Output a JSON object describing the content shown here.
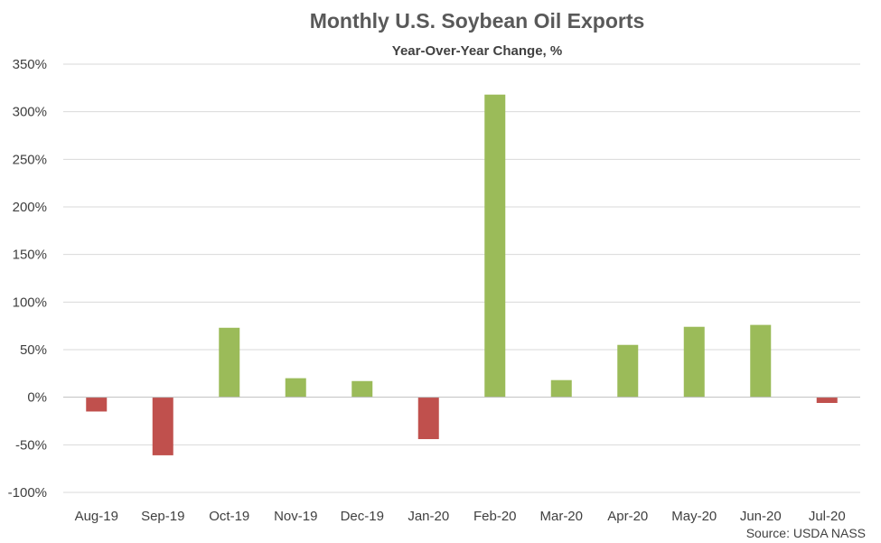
{
  "chart_data": {
    "type": "bar",
    "title": "Monthly U.S. Soybean Oil Exports",
    "subtitle": "Year-Over-Year Change, %",
    "source": "Source: USDA NASS",
    "categories": [
      "Aug-19",
      "Sep-19",
      "Oct-19",
      "Nov-19",
      "Dec-19",
      "Jan-20",
      "Feb-20",
      "Mar-20",
      "Apr-20",
      "May-20",
      "Jun-20",
      "Jul-20"
    ],
    "values": [
      -15,
      -61,
      73,
      20,
      17,
      -44,
      318,
      18,
      55,
      74,
      76,
      -6
    ],
    "ylim": [
      -100,
      350
    ],
    "yticks": [
      350,
      300,
      250,
      200,
      150,
      100,
      50,
      0,
      -50,
      -100
    ],
    "ytick_labels": [
      "350%",
      "300%",
      "250%",
      "200%",
      "150%",
      "100%",
      "50%",
      "0%",
      "-50%",
      "-100%"
    ],
    "grid": true,
    "colors": {
      "positive": "#9bbb59",
      "negative": "#c0504d",
      "grid": "#d9d9d9",
      "axis": "#bfbfbf"
    }
  }
}
